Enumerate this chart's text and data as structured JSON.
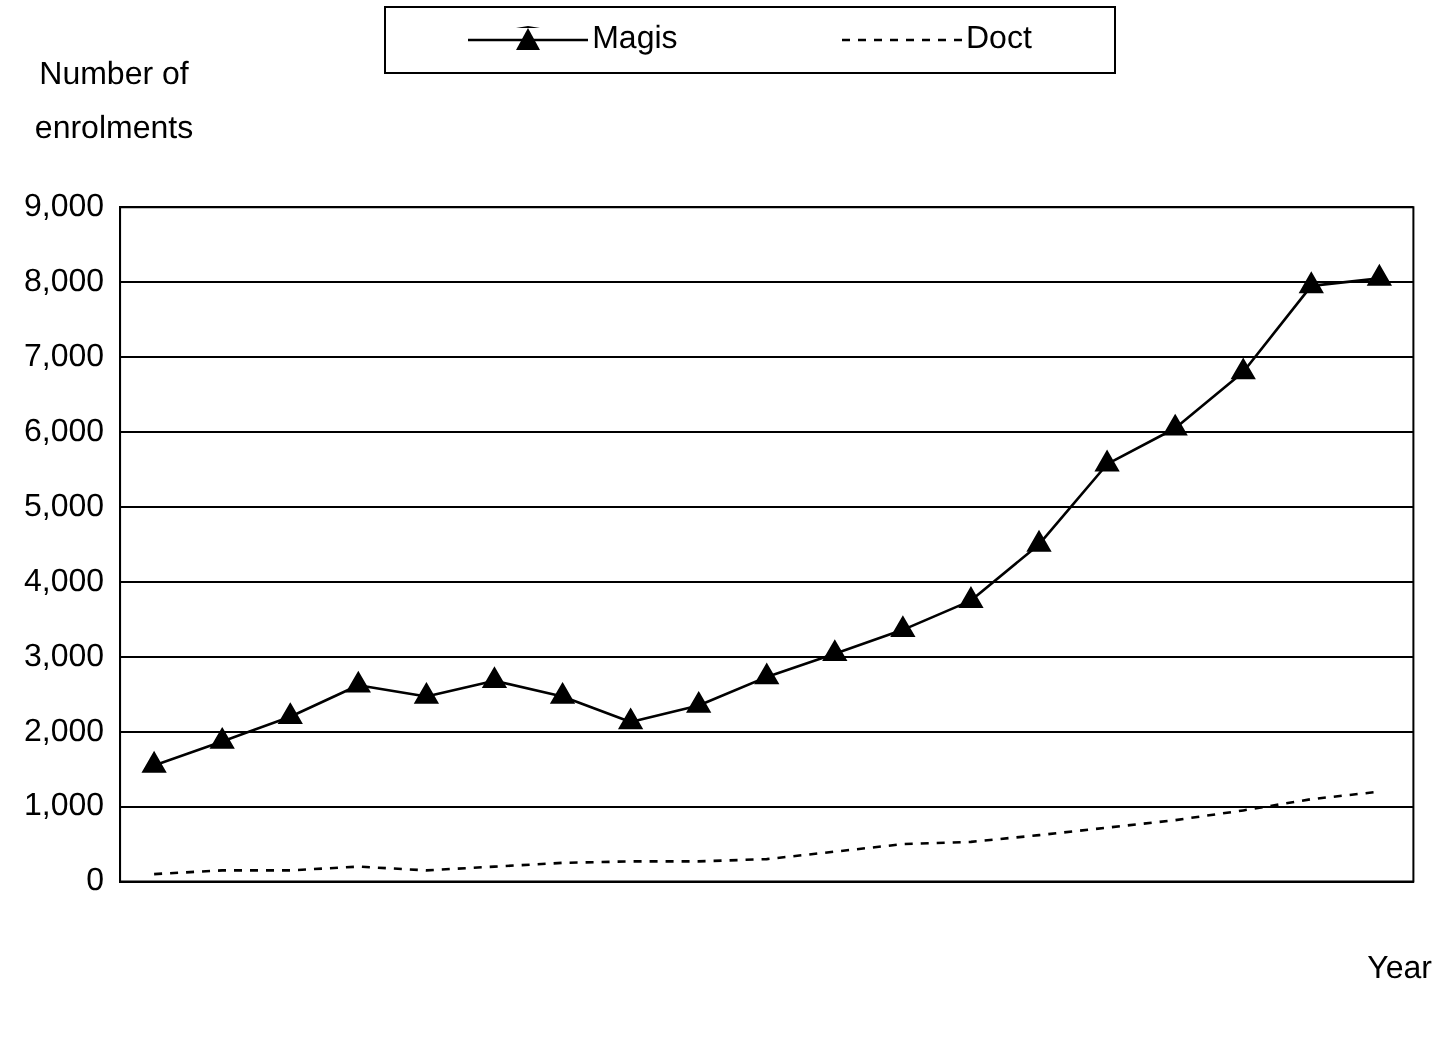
{
  "chart_data": {
    "type": "line",
    "ylabel": "Number of enrolments",
    "xlabel": "Year",
    "categories": [
      null,
      null,
      null,
      null,
      null,
      null,
      null,
      null,
      null,
      null,
      null,
      null,
      null,
      null,
      null,
      null,
      null,
      null,
      null
    ],
    "series": [
      {
        "name": "Magis",
        "color": "#000000",
        "marker": "triangle",
        "line_style": "solid",
        "values": [
          1550,
          1870,
          2200,
          2620,
          2470,
          2680,
          2470,
          2130,
          2350,
          2730,
          3040,
          3360,
          3750,
          4500,
          5570,
          6050,
          6800,
          7950,
          8050
        ]
      },
      {
        "name": "Doct",
        "color": "#000000",
        "marker": "none",
        "line_style": "dashed",
        "values": [
          100,
          150,
          150,
          200,
          150,
          200,
          250,
          270,
          270,
          300,
          400,
          500,
          530,
          620,
          720,
          820,
          950,
          1100,
          1200
        ]
      }
    ],
    "ylim": [
      0,
      9000
    ],
    "yticks": [
      {
        "value": 0,
        "label": "0"
      },
      {
        "value": 1000,
        "label": "1,000"
      },
      {
        "value": 2000,
        "label": "2,000"
      },
      {
        "value": 3000,
        "label": "3,000"
      },
      {
        "value": 4000,
        "label": "4,000"
      },
      {
        "value": 5000,
        "label": "5,000"
      },
      {
        "value": 6000,
        "label": "6,000"
      },
      {
        "value": 7000,
        "label": "7,000"
      },
      {
        "value": 8000,
        "label": "8,000"
      },
      {
        "value": 9000,
        "label": "9,000"
      }
    ],
    "grid": "y",
    "legend": "top"
  }
}
